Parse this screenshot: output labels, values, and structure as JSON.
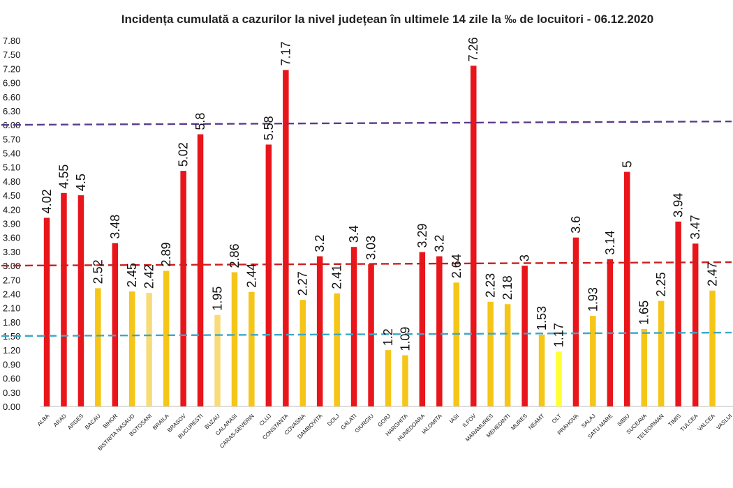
{
  "title": "Incidența cumulată a cazurilor la nivel județean în ultimele 14 zile la ‰ de locuitori - 06.12.2020",
  "chart_data": {
    "type": "bar",
    "title": "Incidența cumulată a cazurilor la nivel județean în ultimele 14 zile la ‰ de locuitori - 06.12.2020",
    "xlabel": "",
    "ylabel": "",
    "ylim": [
      0,
      7.8
    ],
    "yticks": [
      "0.00",
      "0.30",
      "0.60",
      "0.90",
      "1.20",
      "1.50",
      "1.80",
      "2.10",
      "2.40",
      "2.70",
      "3.00",
      "3.30",
      "3.60",
      "3.90",
      "4.20",
      "4.50",
      "4.80",
      "5.10",
      "5.40",
      "5.70",
      "6.00",
      "6.30",
      "6.60",
      "6.90",
      "7.20",
      "7.50",
      "7.80"
    ],
    "categories": [
      "ALBA",
      "ARAD",
      "ARGES",
      "BACAU",
      "BIHOR",
      "BISTRITA NASAUD",
      "BOTOSANI",
      "BRAILA",
      "BRASOV",
      "BUCURESTI",
      "BUZAU",
      "CALARASI",
      "CARAS-SEVERIN",
      "CLUJ",
      "CONSTANTA",
      "COVASNA",
      "DAMBOVITA",
      "DOLJ",
      "GALATI",
      "GIURGIU",
      "GORJ",
      "HARGHITA",
      "HUNEDOARA",
      "IALOMITA",
      "IASI",
      "ILFOV",
      "MARAMURES",
      "MEHEDINTI",
      "MURES",
      "NEAMT",
      "OLT",
      "PRAHOVA",
      "SALAJ",
      "SATU MARE",
      "SIBIU",
      "SUCEAVA",
      "TELEORMAN",
      "TIMIS",
      "TULCEA",
      "VALCEA",
      "VASLUI"
    ],
    "values": [
      4.02,
      4.55,
      4.5,
      2.52,
      3.48,
      2.45,
      2.42,
      2.89,
      5.02,
      5.8,
      1.95,
      2.86,
      2.44,
      5.58,
      7.17,
      2.27,
      3.2,
      2.41,
      3.4,
      3.03,
      1.2,
      1.09,
      3.29,
      3.2,
      2.64,
      7.26,
      2.23,
      2.18,
      3,
      1.53,
      1.17,
      3.6,
      1.93,
      3.14,
      5,
      1.65,
      2.25,
      3.94,
      3.47,
      2.47,
      null
    ],
    "value_labels": [
      "4.02",
      "4.55",
      "4.5",
      "2.52",
      "3.48",
      "2.45",
      "2.42",
      "2.89",
      "5.02",
      "5.8",
      "1.95",
      "2.86",
      "2.44",
      "5.58",
      "7.17",
      "2.27",
      "3.2",
      "2.41",
      "3.4",
      "3.03",
      "1.2",
      "1.09",
      "3.29",
      "3.2",
      "2.64",
      "7.26",
      "2.23",
      "2.18",
      "3",
      "1.53",
      "1.17",
      "3.6",
      "1.93",
      "3.14",
      "5",
      "1.65",
      "2.25",
      "3.94",
      "3.47",
      "2.47",
      ""
    ],
    "colors": {
      "high": "#e8161b",
      "mid": "#f5c518",
      "mid_light": "#f8dc7a",
      "low": "#fbe84a",
      "lightest": "#ffff33"
    },
    "bar_color_keys": [
      "high",
      "high",
      "high",
      "mid",
      "high",
      "mid",
      "mid_light",
      "mid",
      "high",
      "high",
      "mid_light",
      "mid",
      "mid",
      "high",
      "high",
      "mid",
      "high",
      "mid",
      "high",
      "high",
      "mid",
      "mid",
      "high",
      "high",
      "mid",
      "high",
      "mid",
      "mid",
      "high",
      "mid",
      "lightest",
      "high",
      "mid",
      "high",
      "high",
      "mid",
      "mid",
      "high",
      "high",
      "mid",
      "mid"
    ],
    "thresholds": [
      {
        "value": 6.0,
        "color": "#5b3c8c"
      },
      {
        "value": 3.0,
        "color": "#cc1f1f"
      },
      {
        "value": 1.5,
        "color": "#3aa7c9"
      }
    ],
    "grid": false,
    "legend": "none"
  }
}
